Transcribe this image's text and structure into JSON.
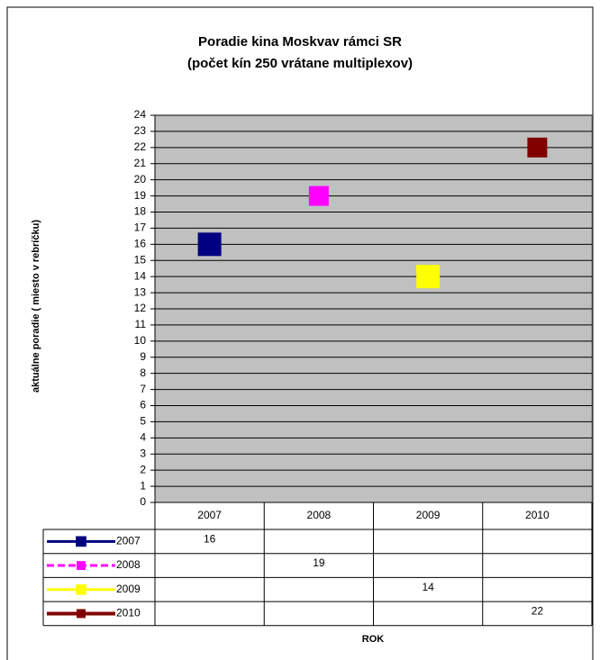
{
  "chart_data": {
    "type": "line",
    "title": "Poradie kina Moskvav rámci SR",
    "subtitle": "(počet kín 250 vrátane multiplexov)",
    "y_label": "aktuálne poradie ( miesto v rebríčku)",
    "x_label": "ROK",
    "categories": [
      "2007",
      "2008",
      "2009",
      "2010"
    ],
    "series": [
      {
        "name": "2007",
        "color": "#000080",
        "line_style": "solid",
        "values": [
          16,
          null,
          null,
          null
        ]
      },
      {
        "name": "2008",
        "color": "#ff00ff",
        "line_style": "dashed",
        "values": [
          null,
          19,
          null,
          null
        ]
      },
      {
        "name": "2009",
        "color": "#ffff00",
        "line_style": "solid",
        "values": [
          null,
          null,
          14,
          null
        ]
      },
      {
        "name": "2010",
        "color": "#800000",
        "line_style": "solid",
        "values": [
          null,
          null,
          null,
          22
        ]
      }
    ],
    "ylim": [
      0,
      24
    ],
    "yticks": [
      0,
      1,
      2,
      3,
      4,
      5,
      6,
      7,
      8,
      9,
      10,
      11,
      12,
      13,
      14,
      15,
      16,
      17,
      18,
      19,
      20,
      21,
      22,
      23,
      24
    ],
    "grid": true,
    "plot_background": "#c0c0c0",
    "data_table": true
  }
}
